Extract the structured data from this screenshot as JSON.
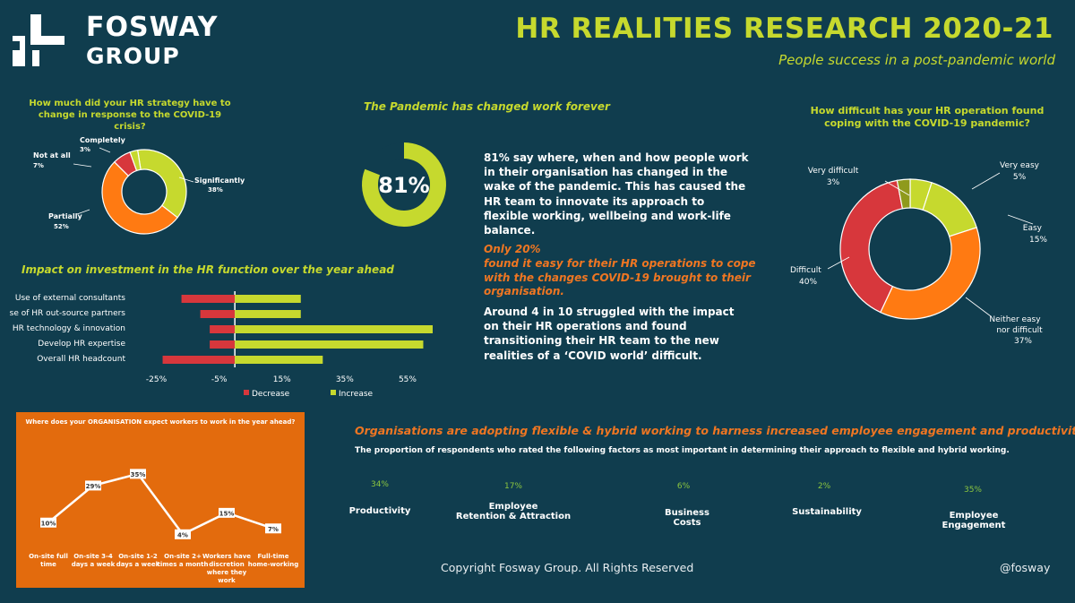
{
  "header": {
    "logo_line1": "FOSWAY",
    "logo_line2": "GROUP",
    "title": "HR REALITIES RESEARCH 2020-21",
    "subtitle": "People success in a post-pandemic world"
  },
  "colors": {
    "background": "#103d4e",
    "lime": "#c6d92e",
    "orange": "#ff7a12",
    "red": "#d7373c",
    "olive": "#8f9a1c",
    "green_text": "#8cc63f",
    "panel_orange": "#e36b0d"
  },
  "strategy_chart": {
    "question": "How much did your HR strategy have to change in response to the COVID-19 crisis?"
  },
  "pandemic": {
    "heading": "The Pandemic has changed work forever",
    "big_number": "81%",
    "para1": "81%  say where, when and how people work in their organisation has changed in the wake of the pandemic. This has caused the HR team to innovate its approach to flexible working, wellbeing and work-life balance.",
    "only_line": "Only 20%",
    "orange_para": "found it easy for their HR operations to cope with the changes COVID-19 brought to their organisation.",
    "para2": "Around 4 in 10 struggled with the impact on their HR operations and found transitioning their HR team to the new realities of a ‘COVID world’ difficult."
  },
  "coping_chart": {
    "question": "How difficult has your HR operation found coping with the COVID-19 pandemic?"
  },
  "investment_chart": {
    "heading": "Impact on investment in the HR function over the year ahead",
    "legend_decrease": "Decrease",
    "legend_increase": "Increase"
  },
  "org_chart": {
    "heading": "Where does your ORGANISATION expect workers to work in the year ahead?"
  },
  "flex": {
    "heading": "Organisations are adopting flexible & hybrid working to harness increased employee engagement and productivity.",
    "subheading": "The proportion of respondents who rated the following factors as most important in determining their approach to flexible and hybrid working.",
    "factors": [
      {
        "pct": "34%",
        "label": "Productivity"
      },
      {
        "pct": "17%",
        "label": "Employee\nRetention & Attraction"
      },
      {
        "pct": "6%",
        "label": "Business\nCosts"
      },
      {
        "pct": "2%",
        "label": "Sustainability"
      },
      {
        "pct": "35%",
        "label": "Employee\nEngagement"
      }
    ]
  },
  "footer": {
    "copyright": "Copyright Fosway Group.  All Rights Reserved",
    "handle": "@fosway"
  },
  "chart_data": [
    {
      "type": "pie",
      "id": "strategy",
      "categories": [
        "Significantly",
        "Partially",
        "Not at all",
        "Completely"
      ],
      "values": [
        38,
        52,
        7,
        3
      ],
      "value_labels": [
        "38%",
        "52%",
        "7%",
        "3%"
      ],
      "colors": [
        "#c6d92e",
        "#ff7a12",
        "#d7373c",
        "#c6d92e"
      ]
    },
    {
      "type": "pie",
      "id": "pandemic-gauge",
      "categories": [
        "Changed"
      ],
      "values": [
        81
      ],
      "value_labels": [
        "81%"
      ]
    },
    {
      "type": "pie",
      "id": "coping",
      "categories": [
        "Very easy",
        "Easy",
        "Neither easy nor difficult",
        "Difficult",
        "Very difficult"
      ],
      "values": [
        5,
        15,
        37,
        40,
        3
      ],
      "value_labels": [
        "5%",
        "15%",
        "37%",
        "40%",
        "3%"
      ],
      "colors": [
        "#c6d92e",
        "#c6d92e",
        "#ff7a12",
        "#d7373c",
        "#8f9a1c"
      ]
    },
    {
      "type": "bar",
      "id": "investment",
      "orientation": "horizontal",
      "categories": [
        "Use of external consultants",
        "Use of HR out-source partners",
        "HR technology & innovation",
        "Develop HR expertise",
        "Overall HR headcount"
      ],
      "series": [
        {
          "name": "Decrease",
          "values": [
            -17,
            -11,
            -8,
            -8,
            -23
          ],
          "color": "#d7373c"
        },
        {
          "name": "Increase",
          "values": [
            21,
            21,
            63,
            60,
            28
          ],
          "color": "#c6d92e"
        }
      ],
      "xticks": [
        "-25%",
        "-5%",
        "15%",
        "35%",
        "55%"
      ],
      "xtick_values": [
        -25,
        -5,
        15,
        35,
        55
      ],
      "xlim": [
        -30,
        65
      ]
    },
    {
      "type": "line",
      "id": "org",
      "categories": [
        "On-site full time",
        "On-site 3-4 days a week",
        "On-site 1-2 days a week",
        "On-site 2+ times a month",
        "Workers have discretion where they work",
        "Full-time home-working"
      ],
      "values": [
        10,
        29,
        35,
        4,
        15,
        7
      ],
      "value_labels": [
        "10%",
        "29%",
        "35%",
        "4%",
        "15%",
        "7%"
      ],
      "ylim": [
        0,
        40
      ]
    }
  ]
}
